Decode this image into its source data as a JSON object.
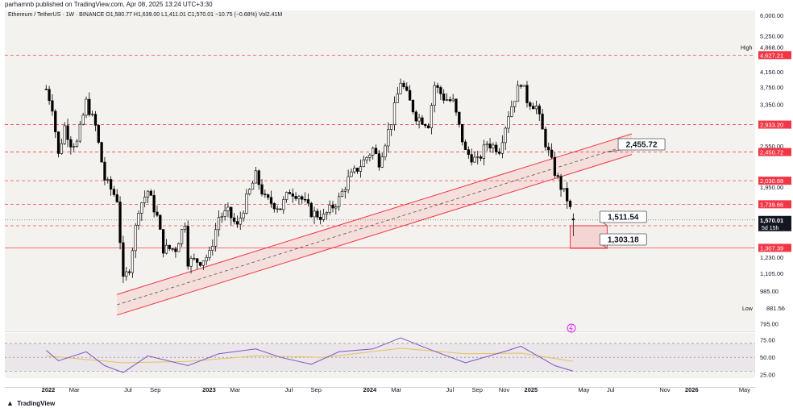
{
  "header": {
    "published": "parhamnb published on TradingView.com, Apr 08, 2025 13:24 UTC+3:30",
    "symbol": "Ethereum / TetherUS · 1W · BINANCE",
    "ohlc": "O1,580.77  H1,639.00  L1,411.01  C1,570.01  −10.75 (−0.68%)  Vol2.41M"
  },
  "footer": {
    "brand": "TradingView"
  },
  "colors": {
    "up": "#ffffff",
    "down": "#000000",
    "level": "#f23645",
    "channel": "#f23645",
    "rsi": "#7e57c2",
    "rsi_ma": "#e8c15a"
  },
  "chart_data": {
    "type": "candlestick",
    "symbol": "ETHUSDT",
    "timeframe": "1W",
    "y_axis": {
      "scale": "log",
      "ticks": [
        "6,000.00",
        "5,250.00",
        "4,627.21",
        "4,150.00",
        "3,750.00",
        "3,350.00",
        "2,933.20",
        "2,550.00",
        "2,450.72",
        "2,030.68",
        "1,950.00",
        "1,739.66",
        "1,570.01",
        "1,511.32",
        "1,307.39",
        "1,230.00",
        "1,105.00",
        "985.00",
        "881.56",
        "795.00"
      ],
      "range": [
        760,
        6200
      ]
    },
    "x_axis": {
      "ticks": [
        "2022",
        "Mar",
        "Jul",
        "Sep",
        "2023",
        "Mar",
        "Jul",
        "Sep",
        "2024",
        "Mar",
        "Jul",
        "Sep",
        "Nov",
        "2025",
        "May",
        "Jul",
        "Nov",
        "2026",
        "May"
      ]
    },
    "close_path": [
      [
        "2021-12-27",
        3700
      ],
      [
        "2022-01-10",
        3300
      ],
      [
        "2022-01-24",
        2400
      ],
      [
        "2022-02-07",
        2900
      ],
      [
        "2022-02-21",
        2600
      ],
      [
        "2022-03-07",
        2600
      ],
      [
        "2022-03-28",
        3400
      ],
      [
        "2022-04-18",
        2900
      ],
      [
        "2022-05-09",
        2050
      ],
      [
        "2022-06-06",
        1800
      ],
      [
        "2022-06-20",
        1050
      ],
      [
        "2022-07-04",
        1150
      ],
      [
        "2022-07-25",
        1700
      ],
      [
        "2022-08-15",
        1900
      ],
      [
        "2022-09-05",
        1600
      ],
      [
        "2022-09-19",
        1300
      ],
      [
        "2022-10-17",
        1300
      ],
      [
        "2022-11-07",
        1550
      ],
      [
        "2022-11-14",
        1200
      ],
      [
        "2022-12-12",
        1200
      ],
      [
        "2023-01-02",
        1250
      ],
      [
        "2023-01-23",
        1600
      ],
      [
        "2023-02-13",
        1650
      ],
      [
        "2023-03-06",
        1500
      ],
      [
        "2023-03-27",
        1800
      ],
      [
        "2023-04-17",
        2100
      ],
      [
        "2023-05-08",
        1800
      ],
      [
        "2023-06-12",
        1700
      ],
      [
        "2023-07-03",
        1900
      ],
      [
        "2023-07-24",
        1850
      ],
      [
        "2023-08-21",
        1650
      ],
      [
        "2023-09-18",
        1600
      ],
      [
        "2023-10-23",
        1800
      ],
      [
        "2023-11-13",
        2050
      ],
      [
        "2023-12-11",
        2250
      ],
      [
        "2024-01-08",
        2500
      ],
      [
        "2024-01-22",
        2300
      ],
      [
        "2024-02-19",
        3000
      ],
      [
        "2024-03-11",
        3900
      ],
      [
        "2024-04-15",
        3100
      ],
      [
        "2024-05-13",
        2950
      ],
      [
        "2024-05-27",
        3800
      ],
      [
        "2024-06-17",
        3500
      ],
      [
        "2024-07-08",
        3400
      ],
      [
        "2024-08-05",
        2450
      ],
      [
        "2024-09-02",
        2300
      ],
      [
        "2024-09-23",
        2600
      ],
      [
        "2024-10-21",
        2500
      ],
      [
        "2024-11-11",
        3150
      ],
      [
        "2024-12-09",
        3900
      ],
      [
        "2024-12-23",
        3450
      ],
      [
        "2025-01-13",
        3300
      ],
      [
        "2025-02-03",
        2600
      ],
      [
        "2025-02-24",
        2150
      ],
      [
        "2025-03-10",
        1950
      ],
      [
        "2025-03-24",
        1800
      ],
      [
        "2025-04-07",
        1570
      ]
    ],
    "horizontal_levels": [
      4627.21,
      2933.2,
      2450.72,
      2030.68,
      1739.66,
      1511.32,
      1307.39
    ],
    "channel": {
      "start": [
        "2022-06-06",
        900
      ],
      "end": [
        "2025-08-18",
        2580
      ],
      "width_ratio": 1.07
    },
    "box": {
      "x": [
        "2025-03-31",
        "2025-06-23"
      ],
      "y": [
        1303.18,
        1511.54
      ]
    },
    "callouts": [
      {
        "text": "2,455.72",
        "value": 2455.72
      },
      {
        "text": "1,511.54",
        "value": 1511.54
      },
      {
        "text": "1,303.18",
        "value": 1303.18
      }
    ],
    "price_labels": {
      "high": {
        "label": "High",
        "value": "4,868.00"
      },
      "low": {
        "label": "Low",
        "value": "881.56"
      },
      "last": {
        "value": "1,570.01",
        "countdown": "5d 15h"
      }
    },
    "rsi": {
      "ticks": [
        "75.00",
        "50.00",
        "25.00"
      ],
      "range": [
        20,
        85
      ],
      "bands": [
        70,
        50,
        30
      ],
      "path": [
        [
          "2021-12-27",
          60
        ],
        [
          "2022-01-24",
          45
        ],
        [
          "2022-03-28",
          58
        ],
        [
          "2022-05-09",
          38
        ],
        [
          "2022-06-20",
          28
        ],
        [
          "2022-08-15",
          52
        ],
        [
          "2022-11-14",
          38
        ],
        [
          "2023-01-23",
          55
        ],
        [
          "2023-04-17",
          62
        ],
        [
          "2023-06-12",
          50
        ],
        [
          "2023-08-21",
          40
        ],
        [
          "2023-10-23",
          58
        ],
        [
          "2024-01-08",
          62
        ],
        [
          "2024-03-11",
          78
        ],
        [
          "2024-05-13",
          62
        ],
        [
          "2024-08-05",
          42
        ],
        [
          "2024-11-11",
          60
        ],
        [
          "2024-12-09",
          66
        ],
        [
          "2025-02-24",
          38
        ],
        [
          "2025-04-07",
          30
        ]
      ],
      "ma_path": [
        [
          "2021-12-27",
          52
        ],
        [
          "2022-06-20",
          42
        ],
        [
          "2022-11-14",
          44
        ],
        [
          "2023-04-17",
          52
        ],
        [
          "2023-09-18",
          50
        ],
        [
          "2024-03-11",
          63
        ],
        [
          "2024-08-05",
          55
        ],
        [
          "2024-12-09",
          56
        ],
        [
          "2025-04-07",
          44
        ]
      ]
    }
  }
}
